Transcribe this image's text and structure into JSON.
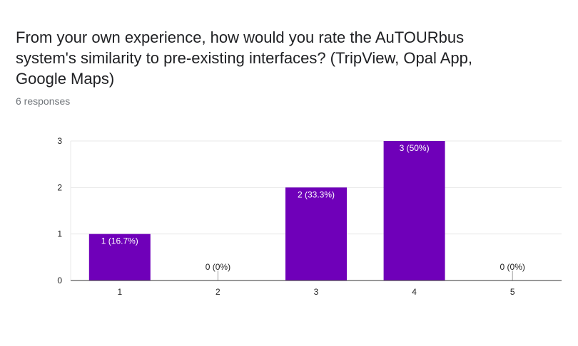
{
  "question": {
    "title": "From your own experience, how would you rate the AuTOURbus system's similarity to pre-existing interfaces? (TripView, Opal App, Google Maps)",
    "responses": "6 responses"
  },
  "colors": {
    "bar": "#6f00b9",
    "grid": "#e8e8e8",
    "axis": "#333333"
  },
  "chart_data": {
    "type": "bar",
    "categories": [
      "1",
      "2",
      "3",
      "4",
      "5"
    ],
    "values": [
      1,
      0,
      2,
      3,
      0
    ],
    "data_labels": [
      "1 (16.7%)",
      "0 (0%)",
      "2 (33.3%)",
      "3 (50%)",
      "0 (0%)"
    ],
    "yticks": [
      0,
      1,
      2,
      3
    ],
    "ylim": [
      0,
      3
    ],
    "grid": true,
    "legend": "none"
  }
}
